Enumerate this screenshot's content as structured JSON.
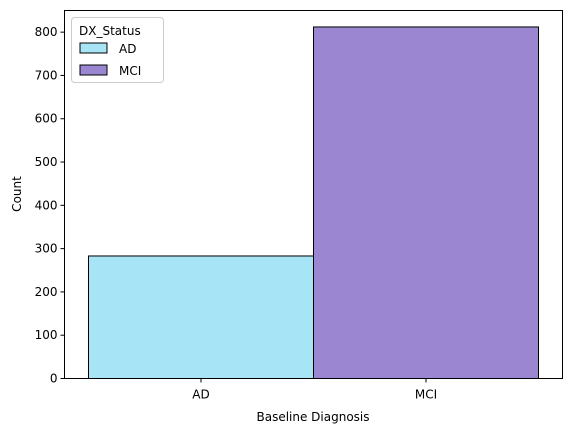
{
  "chart_data": {
    "type": "bar",
    "title": "",
    "xlabel": "Baseline Diagnosis",
    "ylabel": "Count",
    "categories": [
      "AD",
      "MCI"
    ],
    "values": [
      283,
      812
    ],
    "ylim": [
      0,
      850
    ],
    "yticks": [
      0,
      100,
      200,
      300,
      400,
      500,
      600,
      700,
      800
    ],
    "grid": false,
    "legend": {
      "title": "DX_Status",
      "placement": "top-left",
      "entries": [
        {
          "label": "AD",
          "color": "#a6e4f6"
        },
        {
          "label": "MCI",
          "color": "#9b87d1"
        }
      ]
    },
    "bar_colors": [
      "#a6e4f6",
      "#9b87d1"
    ],
    "edge_color": "#000000"
  }
}
